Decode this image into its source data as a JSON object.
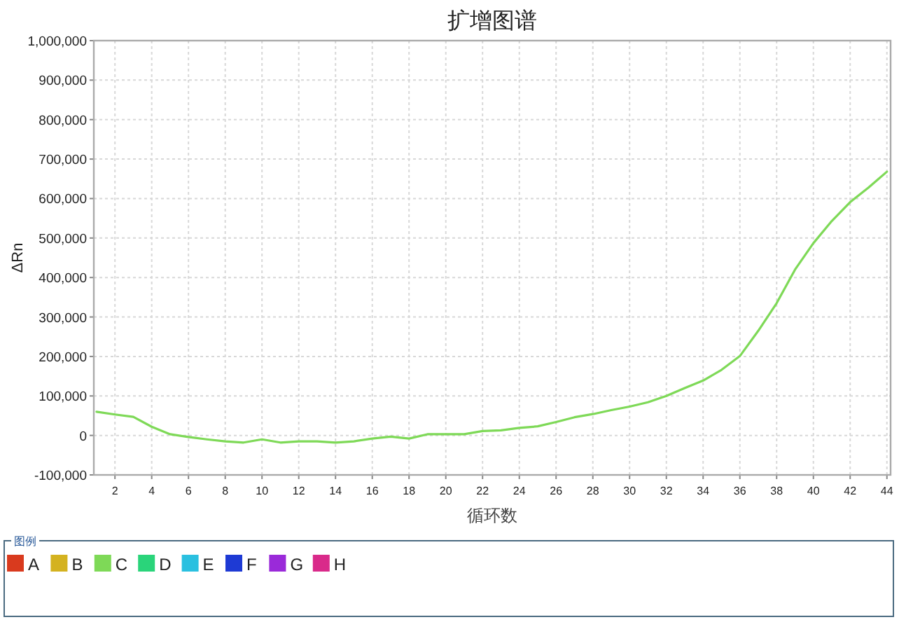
{
  "chart_data": {
    "type": "line",
    "title": "扩增图谱",
    "xlabel": "循环数",
    "ylabel": "ΔRn",
    "legend_title": "图例",
    "legend": "bottom",
    "grid": true,
    "marker": "none",
    "line_style": "solid",
    "x": [
      1,
      2,
      3,
      4,
      5,
      6,
      7,
      8,
      9,
      10,
      11,
      12,
      13,
      14,
      15,
      16,
      17,
      18,
      19,
      20,
      21,
      22,
      23,
      24,
      25,
      26,
      27,
      28,
      29,
      30,
      31,
      32,
      33,
      34,
      35,
      36,
      37,
      38,
      39,
      40,
      41,
      42,
      43,
      44
    ],
    "xlim": [
      0.85,
      44.2
    ],
    "xticks": [
      2,
      4,
      6,
      8,
      10,
      12,
      14,
      16,
      18,
      20,
      22,
      24,
      26,
      28,
      30,
      32,
      34,
      36,
      38,
      40,
      42,
      44
    ],
    "ylim": [
      -100000,
      1000000
    ],
    "yticks": [
      {
        "value": -100000,
        "label": "-100,000"
      },
      0,
      {
        "value": 100000,
        "label": "100,000"
      },
      {
        "value": 200000,
        "label": "200,000"
      },
      {
        "value": 300000,
        "label": "300,000"
      },
      {
        "value": 400000,
        "label": "400,000"
      },
      {
        "value": 500000,
        "label": "500,000"
      },
      {
        "value": 600000,
        "label": "600,000"
      },
      {
        "value": 700000,
        "label": "700,000"
      },
      {
        "value": 800000,
        "label": "800,000"
      },
      {
        "value": 900000,
        "label": "900,000"
      },
      {
        "value": 1000000,
        "label": "1,000,000"
      }
    ],
    "series": [
      {
        "name": "A",
        "color": "#d93a1e",
        "values": [
          null,
          null,
          null,
          null,
          null,
          null,
          null,
          null,
          null,
          null,
          null,
          null,
          null,
          null,
          null,
          null,
          null,
          null,
          null,
          null,
          null,
          null,
          null,
          null,
          null,
          null,
          null,
          null,
          null,
          null,
          null,
          null,
          null,
          null,
          null,
          null,
          null,
          null,
          null,
          null,
          null,
          null,
          null,
          null
        ]
      },
      {
        "name": "B",
        "color": "#d4b21f",
        "values": [
          null,
          null,
          null,
          null,
          null,
          null,
          null,
          null,
          null,
          null,
          null,
          null,
          null,
          null,
          null,
          null,
          null,
          null,
          null,
          null,
          null,
          null,
          null,
          null,
          null,
          null,
          null,
          null,
          null,
          null,
          null,
          null,
          null,
          null,
          null,
          null,
          null,
          null,
          null,
          null,
          null,
          null,
          null,
          null
        ]
      },
      {
        "name": "C",
        "color": "#7ed957",
        "values": [
          60000,
          53000,
          47000,
          22000,
          3000,
          -4000,
          -10000,
          -15000,
          -18000,
          -10000,
          -18000,
          -15000,
          -15000,
          -18000,
          -15000,
          -8000,
          -3000,
          -8000,
          3000,
          3000,
          3000,
          11000,
          13000,
          19000,
          23000,
          34000,
          46000,
          54000,
          64000,
          73000,
          84000,
          100000,
          120000,
          139000,
          166000,
          201000,
          265000,
          335000,
          420000,
          487000,
          543000,
          591000,
          628000,
          668000
        ]
      },
      {
        "name": "D",
        "color": "#2ad47a",
        "values": [
          null,
          null,
          null,
          null,
          null,
          null,
          null,
          null,
          null,
          null,
          null,
          null,
          null,
          null,
          null,
          null,
          null,
          null,
          null,
          null,
          null,
          null,
          null,
          null,
          null,
          null,
          null,
          null,
          null,
          null,
          null,
          null,
          null,
          null,
          null,
          null,
          null,
          null,
          null,
          null,
          null,
          null,
          null,
          null
        ]
      },
      {
        "name": "E",
        "color": "#2ac0e0",
        "values": [
          null,
          null,
          null,
          null,
          null,
          null,
          null,
          null,
          null,
          null,
          null,
          null,
          null,
          null,
          null,
          null,
          null,
          null,
          null,
          null,
          null,
          null,
          null,
          null,
          null,
          null,
          null,
          null,
          null,
          null,
          null,
          null,
          null,
          null,
          null,
          null,
          null,
          null,
          null,
          null,
          null,
          null,
          null,
          null
        ]
      },
      {
        "name": "F",
        "color": "#1e3ad4",
        "values": [
          null,
          null,
          null,
          null,
          null,
          null,
          null,
          null,
          null,
          null,
          null,
          null,
          null,
          null,
          null,
          null,
          null,
          null,
          null,
          null,
          null,
          null,
          null,
          null,
          null,
          null,
          null,
          null,
          null,
          null,
          null,
          null,
          null,
          null,
          null,
          null,
          null,
          null,
          null,
          null,
          null,
          null,
          null,
          null
        ]
      },
      {
        "name": "G",
        "color": "#9a2ad9",
        "values": [
          null,
          null,
          null,
          null,
          null,
          null,
          null,
          null,
          null,
          null,
          null,
          null,
          null,
          null,
          null,
          null,
          null,
          null,
          null,
          null,
          null,
          null,
          null,
          null,
          null,
          null,
          null,
          null,
          null,
          null,
          null,
          null,
          null,
          null,
          null,
          null,
          null,
          null,
          null,
          null,
          null,
          null,
          null,
          null
        ]
      },
      {
        "name": "H",
        "color": "#d92a8a",
        "values": [
          null,
          null,
          null,
          null,
          null,
          null,
          null,
          null,
          null,
          null,
          null,
          null,
          null,
          null,
          null,
          null,
          null,
          null,
          null,
          null,
          null,
          null,
          null,
          null,
          null,
          null,
          null,
          null,
          null,
          null,
          null,
          null,
          null,
          null,
          null,
          null,
          null,
          null,
          null,
          null,
          null,
          null,
          null,
          null
        ]
      }
    ]
  }
}
